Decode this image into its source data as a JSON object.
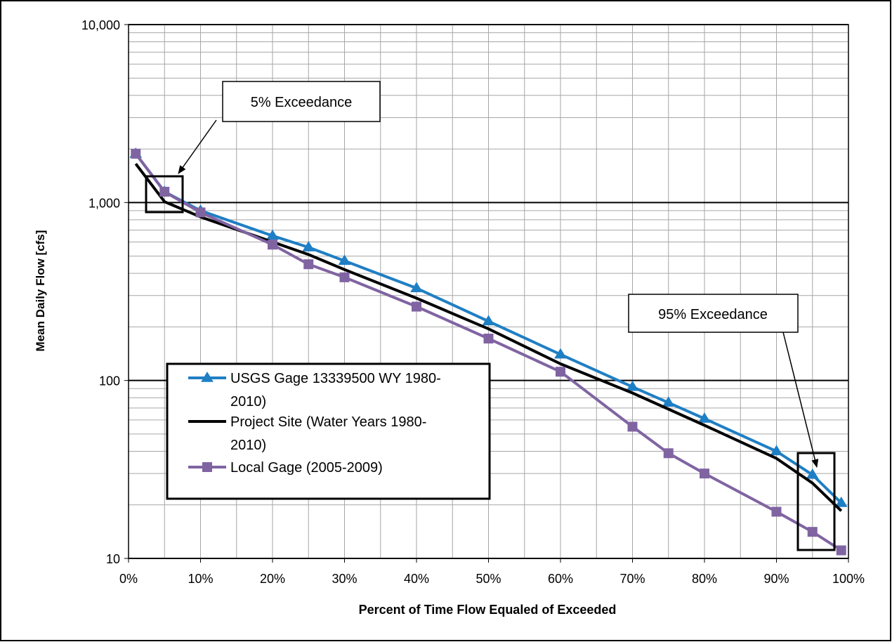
{
  "chart_data": {
    "type": "line",
    "title": "",
    "xlabel": "Percent of Time Flow Equaled of Exceeded",
    "ylabel": "Mean Daily Flow [cfs]",
    "xlim": [
      0,
      100
    ],
    "ylim": [
      10,
      10000
    ],
    "yscale": "log",
    "grid": true,
    "legend_position": "center-left",
    "x_ticks": [
      "0%",
      "10%",
      "20%",
      "30%",
      "40%",
      "50%",
      "60%",
      "70%",
      "80%",
      "90%",
      "100%"
    ],
    "y_ticks": [
      "10",
      "100",
      "1,000",
      "10,000"
    ],
    "series": [
      {
        "name": "USGS Gage 13339500 WY 1980-2010)",
        "color": "#1f7fc4",
        "marker": "triangle",
        "x": [
          1,
          5,
          10,
          20,
          25,
          30,
          40,
          50,
          60,
          70,
          75,
          80,
          90,
          95,
          99
        ],
        "y": [
          1880,
          1150,
          900,
          650,
          560,
          470,
          330,
          215,
          140,
          92,
          75,
          61,
          40,
          29.5,
          20.5
        ]
      },
      {
        "name": "Project Site (Water Years 1980-2010)",
        "color": "#000000",
        "marker": "none",
        "x": [
          1,
          5,
          10,
          20,
          25,
          30,
          40,
          50,
          60,
          70,
          75,
          80,
          90,
          95,
          99
        ],
        "y": [
          1650,
          1010,
          830,
          600,
          510,
          420,
          290,
          195,
          124,
          85,
          69,
          56,
          36.5,
          26.5,
          18.5
        ]
      },
      {
        "name": "Local Gage (2005-2009)",
        "color": "#8064a2",
        "marker": "square",
        "x": [
          1,
          5,
          10,
          20,
          25,
          30,
          40,
          50,
          60,
          70,
          75,
          80,
          90,
          95,
          99
        ],
        "y": [
          1880,
          1150,
          880,
          580,
          450,
          380,
          260,
          172,
          112,
          55,
          39,
          30,
          18.3,
          14.1,
          11.1
        ]
      }
    ],
    "annotations": [
      {
        "text": "5% Exceedance",
        "target_x": 5,
        "target_y": 1100
      },
      {
        "text": "95% Exceedance",
        "target_x": 95,
        "target_y": 24
      }
    ]
  }
}
